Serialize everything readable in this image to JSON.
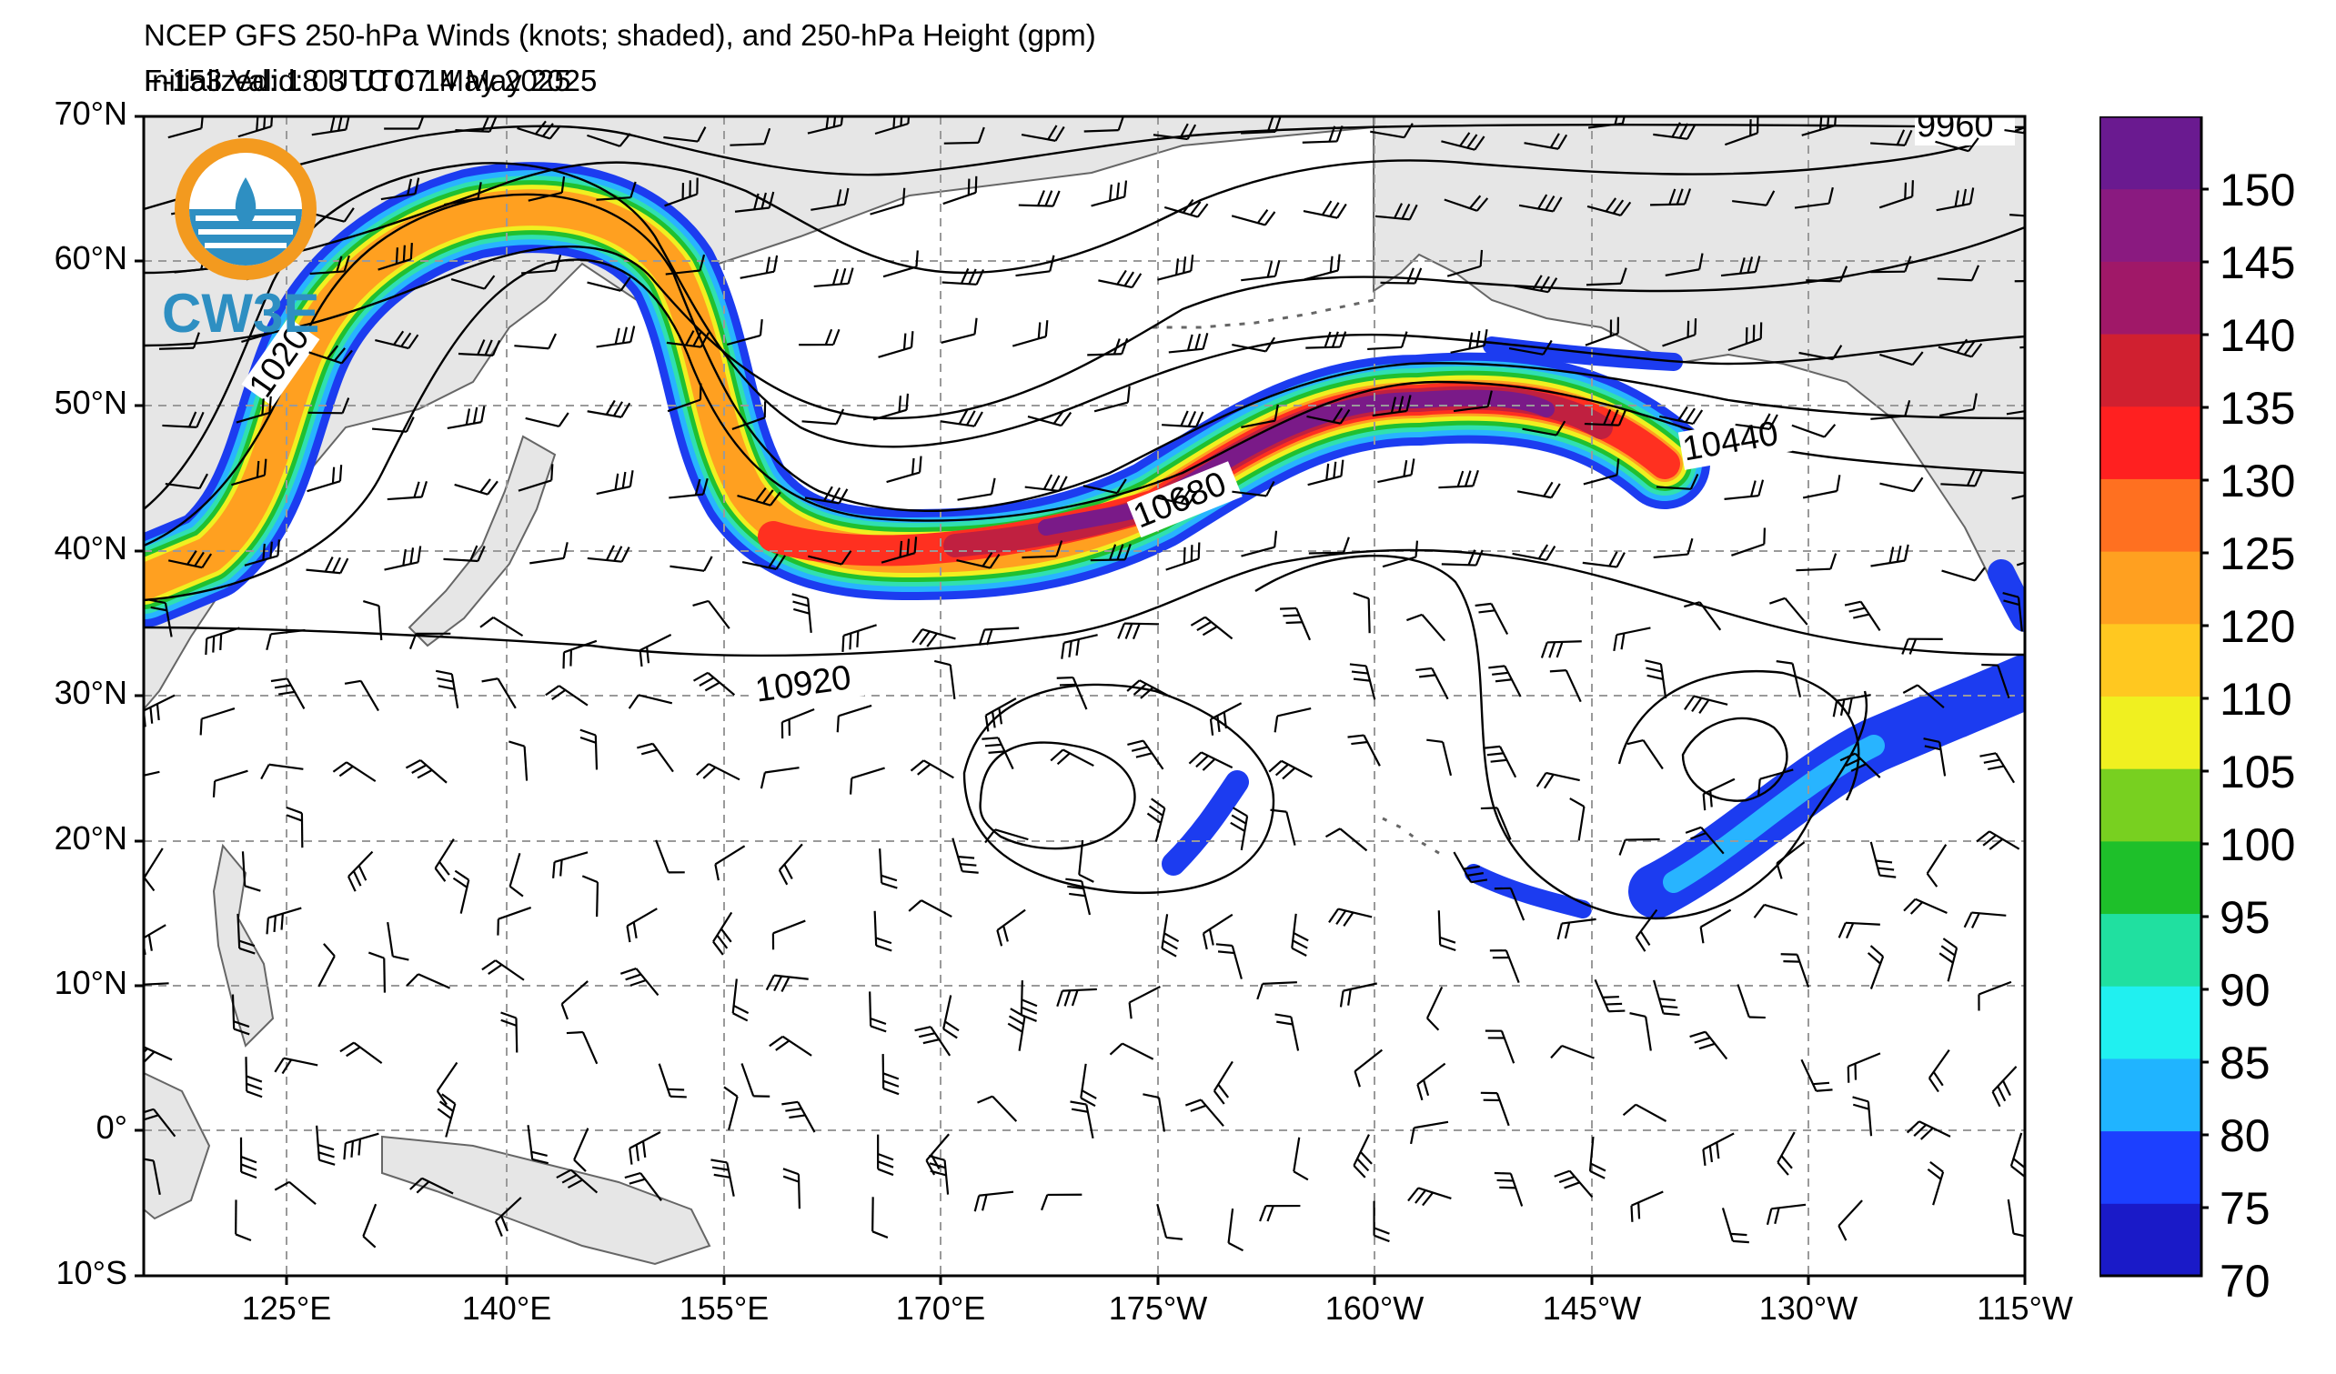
{
  "header": {
    "title": "NCEP GFS 250-hPa Winds (knots; shaded), and 250-hPa Height (gpm)",
    "initialized": "Initialized: 18 UTC 07 May 2025",
    "valid": "F-153  Valid: 03 UTC 14 May 2025"
  },
  "logo": {
    "text": "CW3E",
    "colors": [
      "#f39a1f",
      "#2e8fc2"
    ]
  },
  "axes": {
    "lat_labels": [
      "70°N",
      "60°N",
      "50°N",
      "40°N",
      "30°N",
      "20°N",
      "10°N",
      "0°",
      "10°S"
    ],
    "lon_labels": [
      "125°E",
      "140°E",
      "155°E",
      "170°E",
      "175°W",
      "160°W",
      "145°W",
      "130°W",
      "115°W"
    ]
  },
  "contour_labels": [
    "10440",
    "10680",
    "10920",
    "9960",
    "1020"
  ],
  "colorbar": {
    "tick_labels": [
      "150",
      "145",
      "140",
      "135",
      "130",
      "125",
      "120",
      "110",
      "105",
      "100",
      "95",
      "90",
      "85",
      "80",
      "75",
      "70"
    ],
    "colors": [
      "#1a1ac8",
      "#1c40ff",
      "#20b4ff",
      "#20f0f0",
      "#20e0a0",
      "#1ec02a",
      "#78d020",
      "#f0f020",
      "#ffc820",
      "#ffa020",
      "#ff7020",
      "#ff2020",
      "#d02030",
      "#a01868",
      "#8a1a80",
      "#6a1a90"
    ]
  },
  "map": {
    "land_color": "#e6e6e6",
    "grid_color": "#9a9a9a",
    "jet_colors": [
      "#1c3cf0",
      "#28b4ff",
      "#30e0b0",
      "#20c030",
      "#f0f020",
      "#ffa020",
      "#ff3020",
      "#c02040",
      "#7a1a88"
    ]
  }
}
